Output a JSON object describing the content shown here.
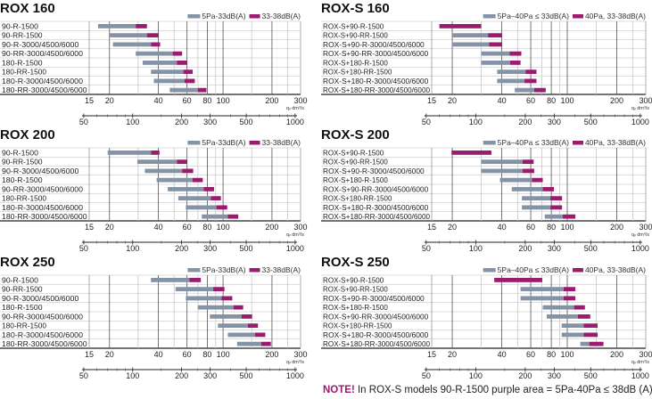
{
  "colors": {
    "low": "#8593a6",
    "high": "#9b1b6e",
    "grid_major": "#555555",
    "grid_minor": "#c8c8c8"
  },
  "axis": {
    "scale": "log",
    "xlim": [
      15,
      300
    ],
    "primary_ticks": [
      15,
      20,
      40,
      60,
      80,
      100,
      200,
      300
    ],
    "grid_major": [
      20,
      40,
      60,
      80,
      100,
      200
    ],
    "grid_minor": [
      30,
      50,
      70,
      90,
      150,
      250
    ],
    "primary_unit": "qᵥ dm³/s",
    "secondary_ticks": [
      50,
      100,
      200,
      300,
      500,
      1000
    ],
    "secondary_unit": "m³/h"
  },
  "chart_data": [
    {
      "type": "bar",
      "title": "ROX 160",
      "legend": [
        "5Pa-33dB(A)",
        "33-38dB(A)"
      ],
      "categories": [
        "90-R-1500",
        "90-RR-1500",
        "90-R-3000/4500/6000",
        "90-RR-3000/4500/6000",
        "180-R-1500",
        "180-RR-1500",
        "180-R-3000/4500/6000",
        "180-RR-3000/4500/6000"
      ],
      "ranges": [
        [
          17,
          29,
          34
        ],
        [
          20,
          34,
          40
        ],
        [
          21,
          36,
          41
        ],
        [
          29,
          49,
          56
        ],
        [
          32,
          52,
          60
        ],
        [
          36,
          57,
          65
        ],
        [
          37.5,
          58,
          67
        ],
        [
          47,
          70,
          79
        ]
      ]
    },
    {
      "type": "bar",
      "title": "ROX-S 160",
      "legend": [
        "5Pa–40Pa ≤ 33dB(A)",
        "40Pa, 33-38dB(A)"
      ],
      "categories": [
        "ROX-S+90-R-1500",
        "ROX-S+90-RR-1500",
        "ROX-S+90-R-3000/4500/6000",
        "ROX-S+90-RR-3000/4500/6000",
        "ROX-S+180-R-1500",
        "ROX-S+180-RR-1500",
        "ROX-S+180-R-3000/4500/6000",
        "ROX-S+180-RR-3000/4500/6000"
      ],
      "ranges": [
        [
          null,
          16.7,
          30
        ],
        [
          20,
          33,
          40
        ],
        [
          20,
          33.5,
          40
        ],
        [
          30,
          44.6,
          52.6
        ],
        [
          30,
          45,
          52
        ],
        [
          37.5,
          55.8,
          65
        ],
        [
          37.5,
          55,
          65
        ],
        [
          48,
          63,
          74
        ]
      ]
    },
    {
      "type": "bar",
      "title": "ROX 200",
      "legend": [
        "5Pa-33dB(A)",
        "33-38dB(A)"
      ],
      "categories": [
        "90-R-1500",
        "90-RR-1500",
        "90-R-3000/4500/6000",
        "180-R-1500",
        "90-RR-3000/4500/6000",
        "180-RR-1500",
        "180-R-3000/4500/6000",
        "180-RR-3000/4500/6000"
      ],
      "ranges": [
        [
          19.5,
          36,
          40.6
        ],
        [
          29.7,
          52,
          60
        ],
        [
          33,
          56,
          65.5
        ],
        [
          39,
          65,
          75
        ],
        [
          45.7,
          76,
          88
        ],
        [
          53,
          84,
          97
        ],
        [
          59,
          91,
          106
        ],
        [
          74,
          107,
          124
        ]
      ]
    },
    {
      "type": "bar",
      "title": "ROX-S 200",
      "legend": [
        "5Pa–40Pa ≤ 33dB(A)",
        "40Pa, 33-38dB(A)"
      ],
      "categories": [
        "ROX-S+90-R-1500",
        "ROX-S+90-RR-1500",
        "ROX-S+90-R-3000/4500/6000",
        "ROX-S+180-R-1500",
        "ROX-S+90-RR-3000/4500/6000",
        "ROX-S+180-RR-1500",
        "ROX-S+180-R-3000/4500/6000",
        "ROX-S+180-RR-3000/4500/6000"
      ],
      "ranges": [
        [
          null,
          19.8,
          34.6
        ],
        [
          30,
          53.5,
          62.5
        ],
        [
          30,
          53.5,
          63
        ],
        [
          39,
          61,
          71
        ],
        [
          46,
          71,
          83
        ],
        [
          53,
          79,
          93
        ],
        [
          53,
          79,
          93
        ],
        [
          73,
          94,
          112
        ]
      ]
    },
    {
      "type": "bar",
      "title": "ROX 250",
      "legend": [
        "5Pa-33dB(A)",
        "33-38dB(A)"
      ],
      "categories": [
        "90-R-1500",
        "90-RR-1500",
        "90-R-3000/4500/6000",
        "180-R-1500",
        "90-RR-3000/4500/6000",
        "180-RR-1500",
        "180-R-3000/4500/6000",
        "180-RR-3000/4500/6000"
      ],
      "ranges": [
        [
          36,
          62,
          73
        ],
        [
          51,
          87,
          102
        ],
        [
          59,
          98,
          114
        ],
        [
          70,
          116,
          133
        ],
        [
          83,
          130,
          151
        ],
        [
          93,
          142,
          164
        ],
        [
          107,
          157,
          182
        ],
        [
          122,
          172,
          197
        ]
      ]
    },
    {
      "type": "bar",
      "title": "ROX-S 250",
      "legend": [
        "5Pa–40Pa ≤ 33dB(A)",
        "40Pa, 33-38dB(A)"
      ],
      "categories": [
        "ROX-S+90-R-1500",
        "ROX-S+90-RR-1500",
        "ROX-S+90-R-3000/4500/6000",
        "ROX-S+180-R-1500",
        "ROX-S+90-RR-3000/4500/6000",
        "ROX-S+180-RR-1500",
        "ROX-S+180-R-3000/4500/6000",
        "ROX-S+180-RR-3000/4500/6000"
      ],
      "ranges": [
        [
          null,
          36,
          70.5
        ],
        [
          52,
          95,
          112
        ],
        [
          52,
          95,
          112
        ],
        [
          71,
          110,
          128
        ],
        [
          75,
          116,
          138
        ],
        [
          92.5,
          126,
          153
        ],
        [
          92.5,
          126,
          153
        ],
        [
          120,
          136,
          166
        ]
      ]
    }
  ],
  "note": {
    "prefix": "NOTE!",
    "text": " In ROX-S models 90-R-1500 purple area = 5Pa-40Pa ≤ 38dB (A)"
  }
}
